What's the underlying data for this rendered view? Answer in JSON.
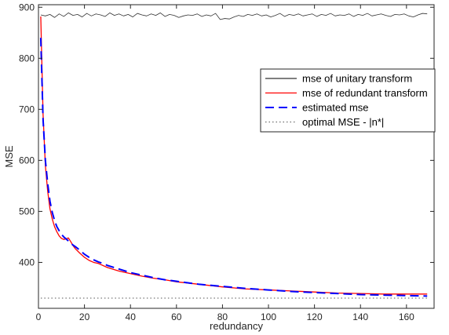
{
  "chart_data": {
    "type": "line",
    "title": "",
    "xlabel": "redundancy",
    "ylabel": "MSE",
    "xlim": [
      0,
      172
    ],
    "ylim": [
      310,
      905
    ],
    "xticks": [
      0,
      20,
      40,
      60,
      80,
      100,
      120,
      140,
      160
    ],
    "yticks": [
      400,
      500,
      600,
      700,
      800,
      900
    ],
    "grid": false,
    "legend_position": "right",
    "series": [
      {
        "name": "mse of unitary transform",
        "color": "#333333",
        "style": "solid",
        "x": [
          1,
          3,
          5,
          7,
          9,
          11,
          13,
          15,
          17,
          19,
          21,
          23,
          25,
          27,
          29,
          31,
          33,
          35,
          37,
          39,
          41,
          43,
          45,
          47,
          49,
          51,
          53,
          55,
          57,
          59,
          61,
          63,
          65,
          67,
          69,
          71,
          73,
          75,
          77,
          79,
          81,
          83,
          85,
          87,
          89,
          91,
          93,
          95,
          97,
          99,
          101,
          103,
          105,
          107,
          109,
          111,
          113,
          115,
          117,
          119,
          121,
          123,
          125,
          127,
          129,
          131,
          133,
          135,
          137,
          139,
          141,
          143,
          145,
          147,
          149,
          151,
          153,
          155,
          157,
          159,
          161,
          163,
          165,
          167,
          169
        ],
        "y": [
          885,
          883,
          886,
          880,
          887,
          882,
          889,
          884,
          886,
          881,
          888,
          883,
          887,
          885,
          882,
          889,
          884,
          887,
          883,
          886,
          881,
          888,
          885,
          883,
          887,
          884,
          889,
          882,
          886,
          884,
          880,
          883,
          885,
          884,
          887,
          882,
          885,
          883,
          888,
          876,
          878,
          877,
          881,
          884,
          882,
          886,
          884,
          887,
          883,
          885,
          881,
          884,
          888,
          882,
          886,
          884,
          887,
          883,
          885,
          887,
          882,
          886,
          884,
          888,
          883,
          885,
          884,
          887,
          882,
          886,
          884,
          888,
          883,
          885,
          887,
          884,
          882,
          886,
          885,
          887,
          883,
          881,
          885,
          888,
          887
        ]
      },
      {
        "name": "mse of redundant transform",
        "color": "#ff0000",
        "style": "solid",
        "x": [
          1,
          2,
          3,
          4,
          5,
          6,
          7,
          8,
          9,
          10,
          11,
          12,
          13,
          14,
          15,
          16,
          18,
          20,
          22,
          24,
          26,
          28,
          30,
          35,
          40,
          45,
          50,
          55,
          60,
          70,
          80,
          90,
          100,
          110,
          120,
          130,
          140,
          150,
          160,
          169
        ],
        "y": [
          882,
          690,
          590,
          540,
          505,
          485,
          470,
          460,
          452,
          447,
          445,
          446,
          448,
          441,
          433,
          427,
          418,
          410,
          404,
          400,
          398,
          394,
          390,
          383,
          378,
          373,
          369,
          366,
          362,
          357,
          352,
          348,
          346,
          344,
          342,
          340,
          339,
          338,
          338,
          338
        ]
      },
      {
        "name": "estimated mse",
        "color": "#0000ff",
        "style": "dashed",
        "x": [
          1,
          2,
          3,
          4,
          5,
          6,
          7,
          8,
          9,
          10,
          11,
          12,
          13,
          14,
          15,
          16,
          18,
          20,
          22,
          24,
          26,
          28,
          30,
          35,
          40,
          45,
          50,
          55,
          60,
          70,
          80,
          90,
          100,
          110,
          120,
          130,
          140,
          150,
          160,
          169
        ],
        "y": [
          840,
          680,
          600,
          555,
          520,
          498,
          482,
          470,
          462,
          455,
          450,
          446,
          442,
          438,
          434,
          431,
          424,
          416,
          410,
          405,
          401,
          398,
          394,
          387,
          380,
          375,
          370,
          366,
          363,
          357,
          353,
          349,
          346,
          343,
          341,
          339,
          337,
          336,
          335,
          334
        ]
      },
      {
        "name": "optimal MSE -  |n*|",
        "color": "#555555",
        "style": "dotted",
        "x": [
          1,
          169
        ],
        "y": [
          330,
          330
        ]
      }
    ]
  }
}
